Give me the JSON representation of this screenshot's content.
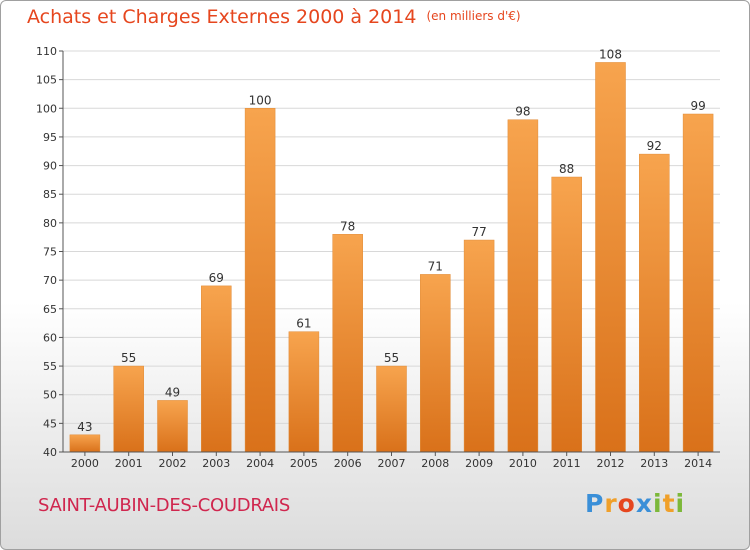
{
  "chart_data": {
    "type": "bar",
    "title": "Achats et Charges Externes 2000 à 2014",
    "subtitle": "(en milliers d'€)",
    "categories": [
      "2000",
      "2001",
      "2002",
      "2003",
      "2004",
      "2005",
      "2006",
      "2007",
      "2008",
      "2009",
      "2010",
      "2011",
      "2012",
      "2013",
      "2014"
    ],
    "values": [
      43,
      55,
      49,
      69,
      100,
      61,
      78,
      55,
      71,
      77,
      98,
      88,
      108,
      92,
      99
    ],
    "ylim": [
      40,
      110
    ],
    "yticks": [
      40,
      45,
      50,
      55,
      60,
      65,
      70,
      75,
      80,
      85,
      90,
      95,
      100,
      105,
      110
    ],
    "grid": true,
    "bar_color": "#f0963c"
  },
  "footer": {
    "commune": "SAINT-AUBIN-DES-COUDRAIS",
    "logo_letters": [
      {
        "ch": "P",
        "color": "#3a8fd8"
      },
      {
        "ch": "r",
        "color": "#f0a02a"
      },
      {
        "ch": "o",
        "color": "#e6461e"
      },
      {
        "ch": "x",
        "color": "#3a8fd8"
      },
      {
        "ch": "i",
        "color": "#7cb83a"
      },
      {
        "ch": "t",
        "color": "#f0a02a"
      },
      {
        "ch": "i",
        "color": "#7cb83a"
      }
    ]
  }
}
